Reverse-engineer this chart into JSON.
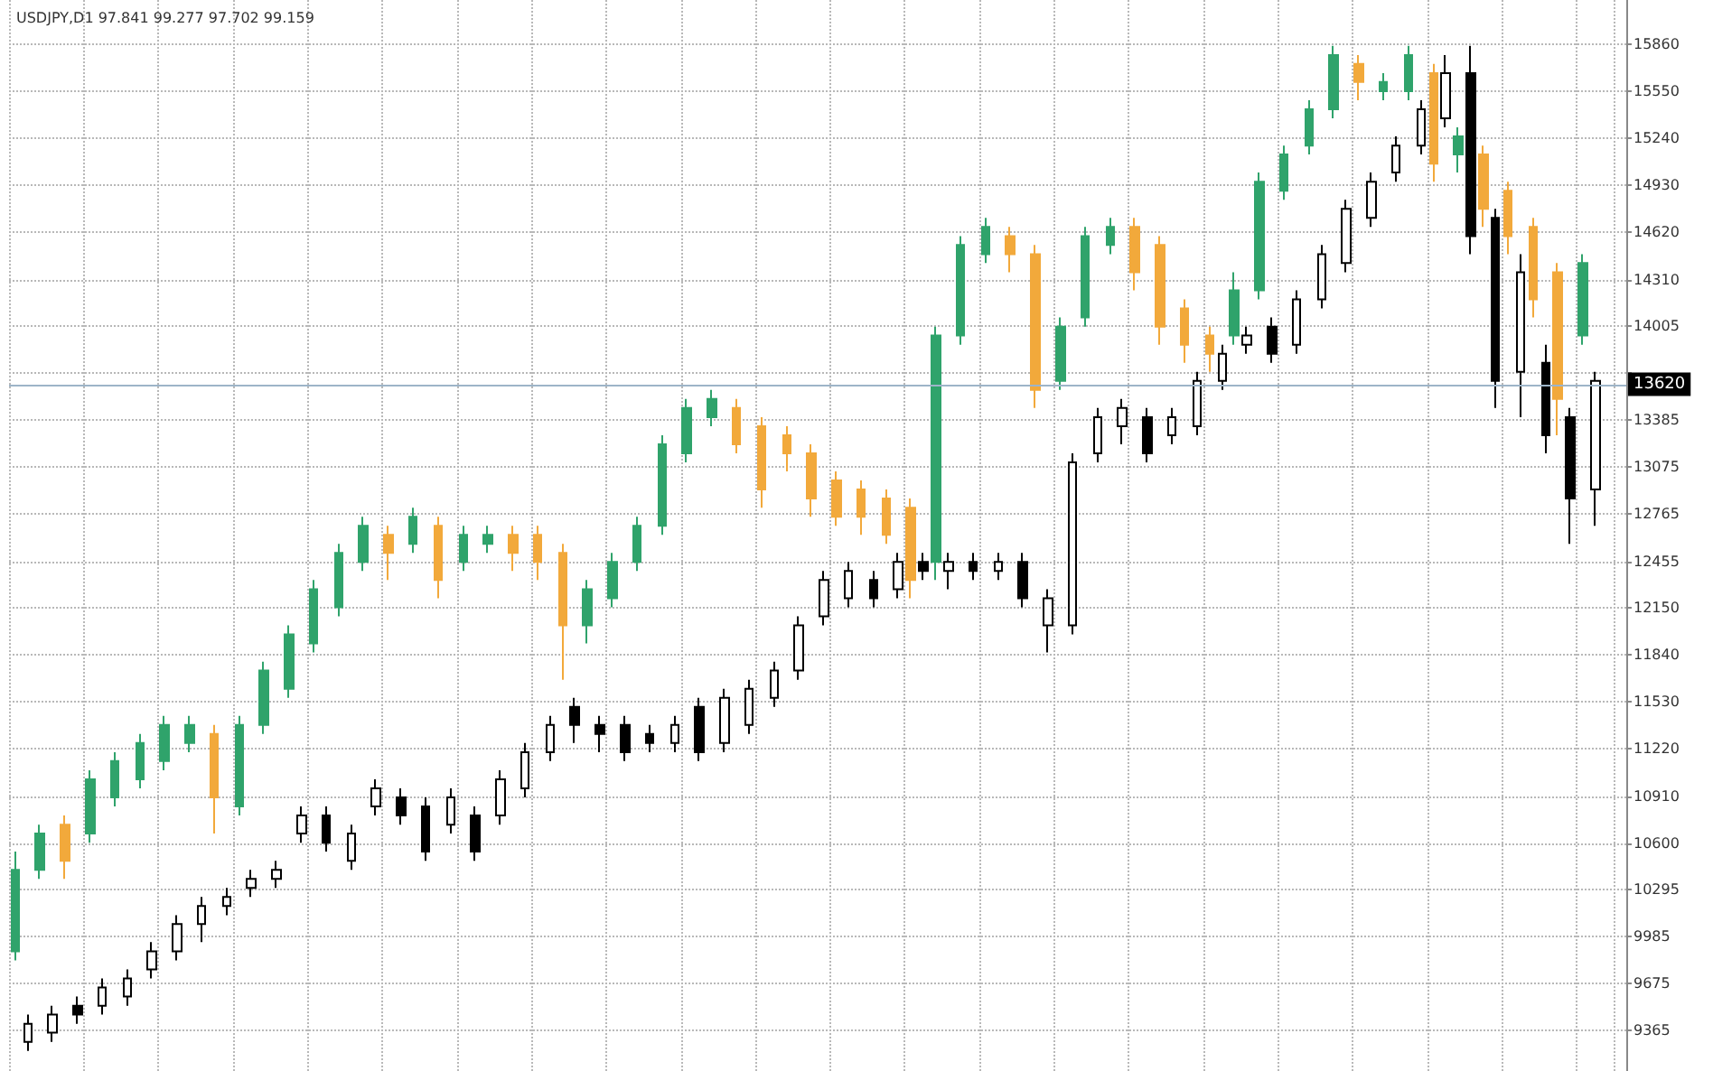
{
  "chart_data": {
    "type": "candlestick",
    "title": "USDJPY,D1 97.841 99.277 97.702 99.159",
    "categories": [
      null,
      null,
      null,
      null,
      null,
      null,
      null,
      null,
      null,
      null,
      null,
      null,
      null,
      null,
      null,
      null,
      null,
      null,
      null,
      null,
      null,
      null,
      null,
      null,
      null,
      null,
      null,
      null,
      null,
      null,
      null,
      null,
      null,
      null,
      null,
      null,
      null,
      null,
      null,
      null,
      null,
      null,
      null,
      null,
      null,
      null,
      null,
      null,
      null,
      null,
      null,
      null,
      null,
      null,
      null,
      null,
      null,
      null,
      null,
      null,
      null,
      null,
      null,
      null,
      null,
      null,
      null,
      null,
      null,
      null,
      null,
      null,
      null,
      null,
      null,
      null,
      null,
      null,
      null,
      null,
      null,
      null,
      null,
      null,
      null,
      null,
      null,
      null,
      null,
      null,
      null,
      null,
      null,
      null,
      null,
      null,
      null,
      null,
      null,
      null,
      null,
      null,
      null,
      null,
      null,
      null,
      null,
      null,
      null,
      null,
      null,
      null,
      null,
      null,
      null,
      null,
      null,
      null,
      null,
      null,
      null,
      null,
      null,
      null,
      null,
      null,
      null,
      null,
      null,
      null
    ],
    "ylim": [
      9100,
      16150
    ],
    "yticks": [
      9365,
      9675,
      9985,
      10295,
      10600,
      10910,
      11220,
      11530,
      11840,
      12150,
      12455,
      12765,
      13075,
      13385,
      {
        "value": 13695,
        "label": null
      },
      14005,
      14310,
      14620,
      14930,
      15240,
      15550,
      15860
    ],
    "grid": true,
    "ref_lines": [
      {
        "axis": "y",
        "value": 13620,
        "label": "13620",
        "color": "#9db4c8"
      }
    ],
    "series": [
      {
        "ohlc": [
          [
            9888,
            10544,
            9828,
            10424
          ],
          null,
          [
            10424,
            10722,
            10365,
            10663
          ],
          null,
          [
            10722,
            10782,
            10365,
            10484
          ],
          null,
          [
            10663,
            11080,
            10603,
            11020
          ],
          null,
          [
            10901,
            11199,
            10842,
            11140
          ],
          null,
          [
            11020,
            11318,
            10961,
            11259
          ],
          null,
          [
            11140,
            11438,
            11080,
            11378
          ],
          null,
          [
            11259,
            11438,
            11199,
            11378
          ],
          null,
          [
            11318,
            11378,
            10663,
            10901
          ],
          null,
          [
            10842,
            11438,
            10782,
            11378
          ],
          null,
          [
            11378,
            11795,
            11318,
            11736
          ],
          null,
          [
            11616,
            12034,
            11557,
            11974
          ],
          null,
          [
            11914,
            12332,
            11855,
            12272
          ],
          null,
          [
            12153,
            12570,
            12093,
            12510
          ],
          null,
          [
            12451,
            12749,
            12391,
            12689
          ],
          null,
          [
            12630,
            12689,
            12332,
            12510
          ],
          null,
          [
            12570,
            12808,
            12510,
            12749
          ],
          null,
          [
            12689,
            12749,
            12212,
            12332
          ],
          null,
          [
            12451,
            12689,
            12391,
            12630
          ],
          null,
          [
            12570,
            12689,
            12510,
            12630
          ],
          null,
          [
            12630,
            12689,
            12391,
            12510
          ],
          null,
          [
            12630,
            12689,
            12332,
            12451
          ],
          null,
          [
            12510,
            12570,
            11676,
            12034
          ],
          null,
          [
            12034,
            12332,
            11914,
            12272
          ],
          null,
          [
            12212,
            12510,
            12153,
            12451
          ],
          null,
          [
            12451,
            12749,
            12391,
            12689
          ],
          null,
          [
            12689,
            13285,
            12630,
            13226
          ],
          null,
          [
            13166,
            13524,
            13106,
            13464
          ],
          null,
          [
            13404,
            13583,
            13345,
            13524
          ],
          null,
          [
            13464,
            13524,
            13166,
            13226
          ],
          null,
          [
            13345,
            13404,
            12808,
            12928
          ],
          null,
          [
            13285,
            13345,
            13047,
            13166
          ],
          null,
          [
            13166,
            13226,
            12749,
            12868
          ],
          null,
          [
            12987,
            13047,
            12689,
            12749
          ],
          null,
          [
            12928,
            12987,
            12630,
            12749
          ],
          null,
          [
            12868,
            12928,
            12570,
            12630
          ],
          null,
          [
            12808,
            12868,
            12212,
            12332
          ],
          null,
          [
            12451,
            14000,
            12332,
            13941
          ],
          null,
          [
            13941,
            14596,
            13881,
            14537
          ],
          null,
          [
            14477,
            14716,
            14418,
            14656
          ],
          null,
          [
            14596,
            14656,
            14358,
            14477
          ],
          null,
          [
            14477,
            14537,
            13464,
            13583
          ],
          null,
          [
            13643,
            14060,
            13583,
            14000
          ],
          null,
          [
            14060,
            14656,
            14000,
            14596
          ],
          null,
          [
            14537,
            14716,
            14477,
            14656
          ],
          null,
          [
            14656,
            14716,
            14239,
            14358
          ],
          null,
          [
            14537,
            14596,
            13881,
            14000
          ],
          null,
          [
            14120,
            14179,
            13762,
            13881
          ],
          null,
          [
            13941,
            14000,
            13702,
            13822
          ],
          null,
          [
            13941,
            14358,
            13881,
            14239
          ],
          null,
          [
            14239,
            15014,
            14179,
            14954
          ],
          null,
          [
            14894,
            15192,
            14835,
            15133
          ],
          null,
          [
            15192,
            15490,
            15133,
            15431
          ],
          null,
          [
            15431,
            15848,
            15371,
            15788
          ],
          null,
          [
            15729,
            15788,
            15490,
            15610
          ],
          null,
          [
            15550,
            15669,
            15490,
            15610
          ],
          null,
          [
            15550,
            15848,
            15490,
            15788
          ],
          null,
          [
            15669,
            15729,
            14954,
            15073
          ],
          null,
          [
            15133,
            15312,
            15014,
            15252
          ],
          null,
          [
            15133,
            15192,
            14656,
            14775
          ],
          null,
          [
            14894,
            14954,
            14477,
            14596
          ],
          null,
          [
            14656,
            14716,
            14060,
            14179
          ],
          null,
          [
            14358,
            14418,
            13285,
            13524
          ],
          null,
          [
            13941,
            14477,
            13881,
            14418
          ],
          null,
          null,
          null
        ],
        "colors": [
          "#2fa36b",
          null,
          "#2fa36b",
          null,
          "#f2a93b",
          null,
          "#2fa36b",
          null,
          "#2fa36b",
          null,
          "#2fa36b",
          null,
          "#2fa36b",
          null,
          "#2fa36b",
          null,
          "#f2a93b",
          null,
          "#2fa36b",
          null,
          "#2fa36b",
          null,
          "#2fa36b",
          null,
          "#2fa36b",
          null,
          "#2fa36b",
          null,
          "#2fa36b",
          null,
          "#f2a93b",
          null,
          "#2fa36b",
          null,
          "#f2a93b",
          null,
          "#2fa36b",
          null,
          "#2fa36b",
          null,
          "#f2a93b",
          null,
          "#f2a93b",
          null,
          "#f2a93b",
          null,
          "#2fa36b",
          null,
          "#2fa36b",
          null,
          "#2fa36b",
          null,
          "#2fa36b",
          null,
          "#2fa36b",
          null,
          "#2fa36b",
          null,
          "#f2a93b",
          null,
          "#f2a93b",
          null,
          "#f2a93b",
          null,
          "#f2a93b",
          null,
          "#f2a93b",
          null,
          "#f2a93b",
          null,
          "#f2a93b",
          null,
          "#f2a93b",
          null,
          "#2fa36b",
          null,
          "#2fa36b",
          null,
          "#2fa36b",
          null,
          "#f2a93b",
          null,
          "#f2a93b",
          null,
          "#2fa36b",
          null,
          "#2fa36b",
          null,
          "#2fa36b",
          null,
          "#f2a93b",
          null,
          "#f2a93b",
          null,
          "#f2a93b",
          null,
          "#f2a93b",
          null,
          "#2fa36b",
          null,
          "#2fa36b",
          null,
          "#2fa36b",
          null,
          "#2fa36b",
          null,
          "#2fa36b",
          null,
          "#f2a93b",
          null,
          "#2fa36b",
          null,
          "#2fa36b",
          null,
          "#f2a93b",
          null,
          "#2fa36b",
          null,
          "#f2a93b",
          null,
          "#f2a93b",
          null,
          "#f2a93b",
          null,
          "#f2a93b",
          null,
          "#2fa36b",
          null,
          null,
          null
        ]
      },
      {
        "color": "#000000",
        "ohlc": [
          null,
          [
            9292,
            9471,
            9232,
            9411
          ],
          null,
          [
            9352,
            9530,
            9292,
            9471
          ],
          null,
          [
            9530,
            9590,
            9411,
            9471
          ],
          null,
          [
            9530,
            9709,
            9471,
            9650
          ],
          null,
          [
            9590,
            9769,
            9530,
            9709
          ],
          null,
          [
            9769,
            9948,
            9709,
            9888
          ],
          null,
          [
            9888,
            10126,
            9828,
            10067
          ],
          null,
          [
            10067,
            10246,
            9948,
            10186
          ],
          null,
          [
            10186,
            10305,
            10126,
            10246
          ],
          null,
          [
            10305,
            10424,
            10246,
            10365
          ],
          null,
          [
            10365,
            10484,
            10305,
            10424
          ],
          null,
          [
            10663,
            10842,
            10603,
            10782
          ],
          null,
          [
            10782,
            10842,
            10544,
            10603
          ],
          null,
          [
            10484,
            10722,
            10424,
            10663
          ],
          null,
          [
            10842,
            11020,
            10782,
            10961
          ],
          null,
          [
            10901,
            10961,
            10722,
            10782
          ],
          null,
          [
            10842,
            10901,
            10484,
            10544
          ],
          null,
          [
            10722,
            10961,
            10663,
            10901
          ],
          null,
          [
            10782,
            10842,
            10484,
            10544
          ],
          null,
          [
            10782,
            11080,
            10722,
            11020
          ],
          null,
          [
            10961,
            11259,
            10901,
            11199
          ],
          null,
          [
            11199,
            11438,
            11140,
            11378
          ],
          null,
          [
            11497,
            11557,
            11259,
            11378
          ],
          null,
          [
            11378,
            11438,
            11199,
            11318
          ],
          null,
          [
            11378,
            11438,
            11140,
            11199
          ],
          null,
          [
            11318,
            11378,
            11199,
            11259
          ],
          null,
          [
            11259,
            11438,
            11199,
            11378
          ],
          null,
          [
            11497,
            11557,
            11140,
            11199
          ],
          null,
          [
            11259,
            11616,
            11199,
            11557
          ],
          null,
          [
            11378,
            11676,
            11318,
            11616
          ],
          null,
          [
            11557,
            11795,
            11497,
            11736
          ],
          null,
          [
            11736,
            12093,
            11676,
            12034
          ],
          null,
          [
            12093,
            12391,
            12034,
            12332
          ],
          null,
          [
            12212,
            12451,
            12153,
            12391
          ],
          null,
          [
            12332,
            12391,
            12153,
            12212
          ],
          null,
          [
            12272,
            12510,
            12212,
            12451
          ],
          null,
          [
            12451,
            12510,
            12332,
            12391
          ],
          null,
          [
            12391,
            12510,
            12272,
            12451
          ],
          null,
          [
            12451,
            12510,
            12332,
            12391
          ],
          null,
          [
            12391,
            12510,
            12332,
            12451
          ],
          null,
          [
            12451,
            12510,
            12153,
            12212
          ],
          null,
          [
            12034,
            12272,
            11855,
            12212
          ],
          null,
          [
            12034,
            13166,
            11974,
            13106
          ],
          null,
          [
            13166,
            13464,
            13106,
            13404
          ],
          null,
          [
            13345,
            13524,
            13226,
            13464
          ],
          null,
          [
            13404,
            13464,
            13106,
            13166
          ],
          null,
          [
            13285,
            13464,
            13226,
            13404
          ],
          null,
          [
            13345,
            13702,
            13285,
            13643
          ],
          null,
          [
            13643,
            13881,
            13583,
            13822
          ],
          null,
          [
            13881,
            14000,
            13822,
            13941
          ],
          null,
          [
            14000,
            14060,
            13762,
            13822
          ],
          null,
          [
            13881,
            14239,
            13822,
            14179
          ],
          null,
          [
            14179,
            14537,
            14120,
            14477
          ],
          null,
          [
            14418,
            14835,
            14358,
            14775
          ],
          null,
          [
            14716,
            15014,
            14656,
            14954
          ],
          null,
          [
            15014,
            15252,
            14954,
            15192
          ],
          null,
          [
            15192,
            15490,
            15133,
            15431
          ],
          null,
          [
            15371,
            15788,
            15312,
            15669
          ],
          null,
          [
            15669,
            15848,
            14477,
            14596
          ],
          null,
          [
            14716,
            14775,
            13464,
            13643
          ],
          null,
          [
            13702,
            14477,
            13404,
            14358
          ],
          null,
          [
            13762,
            13881,
            13166,
            13285
          ],
          null,
          [
            13404,
            13464,
            12570,
            12868
          ],
          null,
          [
            12928,
            13702,
            12689,
            13643
          ],
          null,
          null
        ],
        "colors": [
          null,
          "#ffffff",
          null,
          "#ffffff",
          null,
          "#000000",
          null,
          "#ffffff",
          null,
          "#ffffff",
          null,
          "#ffffff",
          null,
          "#ffffff",
          null,
          "#ffffff",
          null,
          "#ffffff",
          null,
          "#ffffff",
          null,
          "#ffffff",
          null,
          "#ffffff",
          null,
          "#000000",
          null,
          "#ffffff",
          null,
          "#ffffff",
          null,
          "#000000",
          null,
          "#000000",
          null,
          "#ffffff",
          null,
          "#000000",
          null,
          "#ffffff",
          null,
          "#ffffff",
          null,
          "#ffffff",
          null,
          "#000000",
          null,
          "#000000",
          null,
          "#000000",
          null,
          "#000000",
          null,
          "#ffffff",
          null,
          "#000000",
          null,
          "#ffffff",
          null,
          "#ffffff",
          null,
          "#ffffff",
          null,
          "#ffffff",
          null,
          "#ffffff",
          null,
          "#ffffff",
          null,
          "#000000",
          null,
          "#ffffff",
          null,
          "#000000",
          null,
          "#ffffff",
          null,
          "#000000",
          null,
          "#ffffff",
          null,
          "#000000",
          null,
          "#ffffff",
          null,
          "#ffffff",
          null,
          "#ffffff",
          null,
          "#ffffff",
          null,
          "#000000",
          null,
          "#ffffff",
          null,
          "#ffffff",
          null,
          "#ffffff",
          null,
          "#ffffff",
          null,
          "#000000",
          null,
          "#ffffff",
          null,
          "#ffffff",
          null,
          "#ffffff",
          null,
          "#ffffff",
          null,
          "#ffffff",
          null,
          "#ffffff",
          null,
          "#ffffff",
          null,
          "#000000",
          null,
          "#000000",
          null,
          "#ffffff",
          null,
          "#000000",
          null,
          "#000000",
          null,
          "#ffffff",
          null,
          null
        ]
      }
    ]
  }
}
